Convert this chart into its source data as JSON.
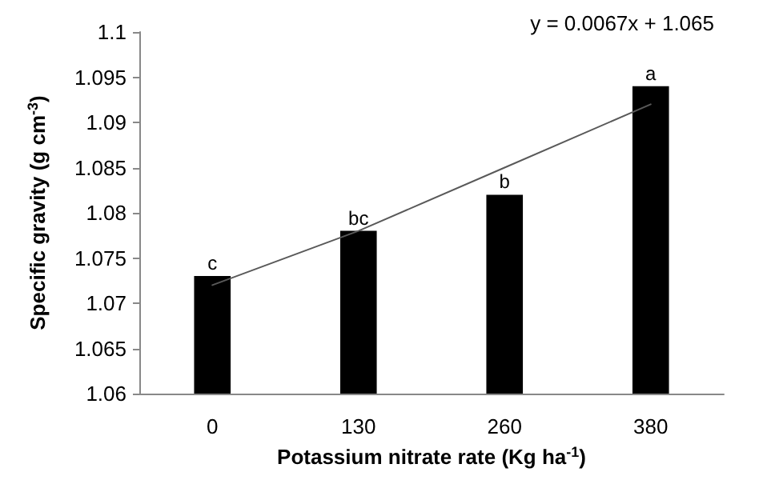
{
  "chart_data": {
    "type": "bar",
    "xlabel": "Potassium nitrate rate (Kg ha$^{-1}$)",
    "ylabel": "Specific gravity (g cm$^{-3}$)",
    "categories": [
      "0",
      "130",
      "260",
      "380"
    ],
    "series": [
      {
        "color": "#000000",
        "values": [
          1.073,
          1.078,
          1.082,
          1.094
        ]
      },
      {
        "type": "line",
        "color": "#595959",
        "x": [
          "0",
          "130",
          "260",
          "380"
        ],
        "values": [
          1.072,
          1.078,
          1.085,
          1.092
        ]
      }
    ],
    "ylim": [
      1.06,
      1.1
    ],
    "yticks": [
      1.06,
      1.065,
      1.07,
      1.075,
      1.08,
      1.085,
      1.09,
      1.095,
      1.1
    ],
    "grid": false,
    "marker": "none",
    "line_style": "solid",
    "annotations": [
      "y = 0.0067x + 1.065",
      {
        "text": "c",
        "x": "0",
        "y": 1.073
      },
      {
        "text": "bc",
        "x": "130",
        "y": 1.078
      },
      {
        "text": "b",
        "x": "260",
        "y": 1.082
      },
      {
        "text": "a",
        "x": "380",
        "y": 1.094
      }
    ]
  }
}
